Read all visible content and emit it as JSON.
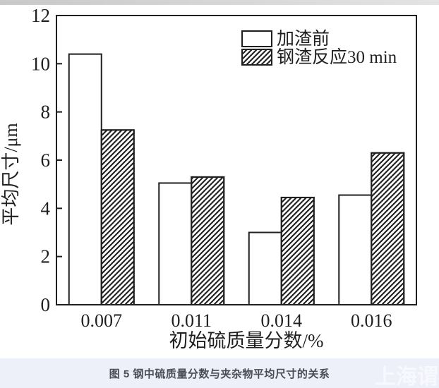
{
  "page": {
    "caption": "图 5 钢中硫质量分数与夹杂物平均尺寸的关系",
    "watermark": "上海谓者",
    "caption_bar_color": "#edf0f8",
    "caption_text_color": "#4a4d57",
    "top_strip_color": "#d5d5d5"
  },
  "chart_data": {
    "type": "bar",
    "title": "",
    "categories": [
      "0.007",
      "0.011",
      "0.014",
      "0.016"
    ],
    "series": [
      {
        "name": "加渣前",
        "pattern": "open",
        "values": [
          10.4,
          5.05,
          3.0,
          4.55
        ]
      },
      {
        "name": "钢渣反应30 min",
        "pattern": "hatch-diagonal",
        "values": [
          7.25,
          5.3,
          4.45,
          6.3
        ]
      }
    ],
    "xlabel": "初始硫质量分数/%",
    "ylabel": "平均尺寸/μm",
    "ylim": [
      0,
      12
    ],
    "yticks": [
      0,
      2,
      4,
      6,
      8,
      10,
      12
    ],
    "grid": false,
    "legend_position": "top-right-inside",
    "axis_color": "#1f1f1f",
    "bar_fill": "#ffffff"
  }
}
